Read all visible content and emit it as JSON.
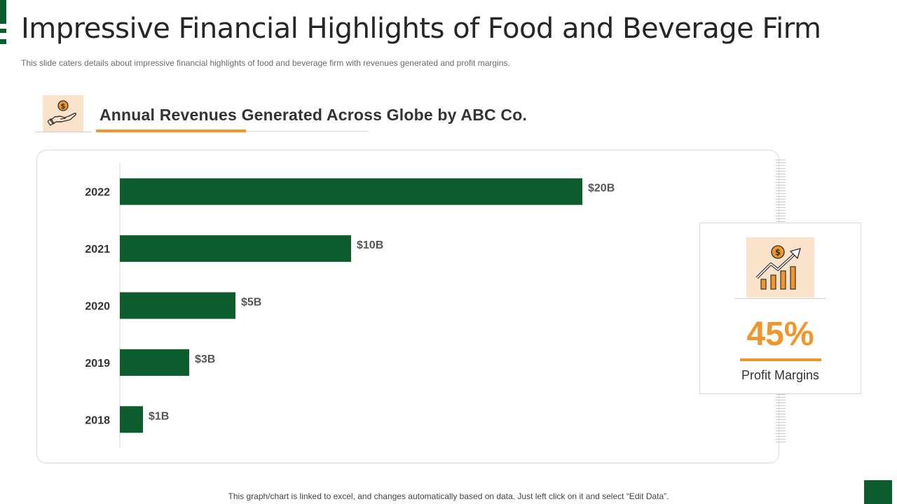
{
  "slide": {
    "title": "Impressive Financial Highlights of Food and Beverage Firm",
    "subtitle": "This slide caters details about impressive  financial highlights of food  and beverage  firm with revenues  generated  and profit  margins.",
    "footer_note": "This graph/chart is linked to excel,  and changes automatically based on data. Just left click on it and select “Edit Data”."
  },
  "section": {
    "heading": "Annual Revenues Generated Across Globe by ABC Co.",
    "icon": "hand-holding-dollar-icon"
  },
  "kpi": {
    "value": "45%",
    "label": "Profit Margins",
    "icon": "growth-chart-dollar-icon"
  },
  "colors": {
    "primary_green": "#0d5c2e",
    "accent_orange": "#f0962b",
    "icon_background": "#fbe3cb"
  },
  "chart_data": {
    "type": "bar",
    "orientation": "horizontal",
    "categories": [
      "2022",
      "2021",
      "2020",
      "2019",
      "2018"
    ],
    "values": [
      20,
      10,
      5,
      3,
      1
    ],
    "data_labels": [
      "$20B",
      "$10B",
      "$5B",
      "$3B",
      "$1B"
    ],
    "unit": "$B",
    "xlim": [
      0,
      30
    ],
    "grid": false,
    "legend": "none",
    "bar_color": "#0d5c2e"
  }
}
